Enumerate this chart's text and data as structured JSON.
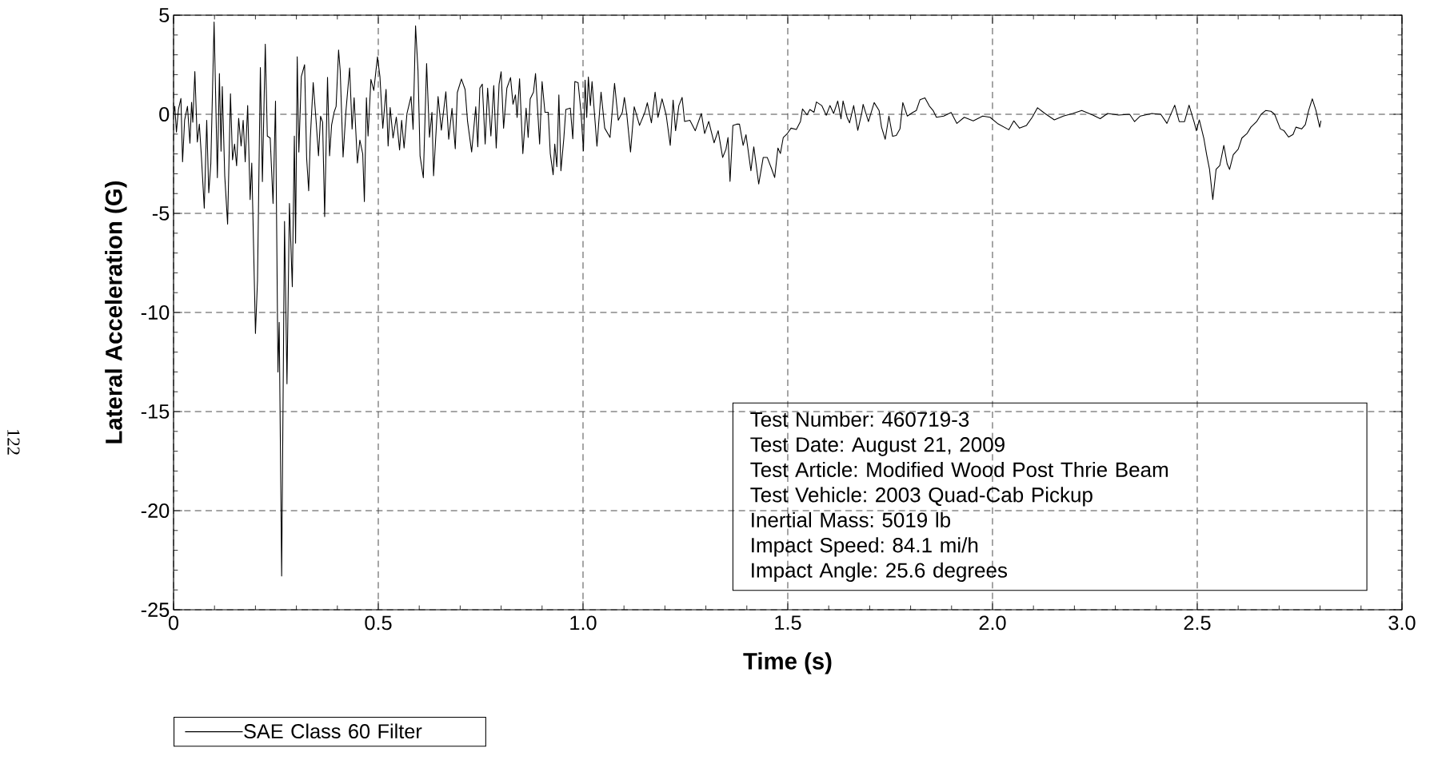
{
  "chart_data": {
    "type": "line",
    "xlabel": "Time (s)",
    "ylabel": "Lateral Acceleration (G)",
    "xlim": [
      0,
      3
    ],
    "ylim": [
      -25,
      5
    ],
    "xticks": [
      0,
      0.5,
      {
        "value": 1,
        "label": "1.0"
      },
      1.5,
      {
        "value": 2,
        "label": "2.0"
      },
      2.5,
      {
        "value": 3,
        "label": "3.0"
      }
    ],
    "yticks": [
      -25,
      -20,
      -15,
      -10,
      -5,
      0,
      5
    ],
    "grid": true,
    "legend": "bottom",
    "marker": "none",
    "line_style": "solid",
    "annotations": [
      "Test Number: 460719-3",
      "Test Date: August 21, 2009",
      "Test Article: Modified Wood Post Thrie Beam",
      "Test Vehicle: 2003 Quad-Cab Pickup",
      "Inertial Mass: 5019 lb",
      "Impact Speed: 84.1 mi/h",
      "Impact Angle: 25.6 degrees",
      "122"
    ],
    "x": [
      0,
      0.003,
      0.007,
      0.012,
      0.018,
      0.022,
      0.027,
      0.034,
      0.04,
      0.044,
      0.047,
      0.052,
      0.058,
      0.063,
      0.068,
      0.075,
      0.081,
      0.086,
      0.091,
      0.099,
      0.107,
      0.112,
      0.116,
      0.119,
      0.125,
      0.132,
      0.139,
      0.144,
      0.149,
      0.154,
      0.159,
      0.165,
      0.17,
      0.175,
      0.181,
      0.187,
      0.191,
      0.2,
      0.205,
      0.212,
      0.217,
      0.224,
      0.229,
      0.236,
      0.243,
      0.249,
      0.255,
      0.258,
      0.264,
      0.271,
      0.277,
      0.283,
      0.29,
      0.295,
      0.298,
      0.302,
      0.306,
      0.312,
      0.32,
      0.325,
      0.33,
      0.334,
      0.341,
      0.348,
      0.354,
      0.359,
      0.364,
      0.369,
      0.376,
      0.381,
      0.386,
      0.392,
      0.397,
      0.403,
      0.407,
      0.414,
      0.421,
      0.43,
      0.436,
      0.441,
      0.449,
      0.455,
      0.462,
      0.466,
      0.471,
      0.475,
      0.482,
      0.489,
      0.498,
      0.504,
      0.511,
      0.519,
      0.524,
      0.529,
      0.536,
      0.544,
      0.552,
      0.557,
      0.563,
      0.57,
      0.58,
      0.585,
      0.591,
      0.597,
      0.602,
      0.61,
      0.618,
      0.625,
      0.631,
      0.635,
      0.646,
      0.654,
      0.665,
      0.672,
      0.68,
      0.688,
      0.693,
      0.703,
      0.712,
      0.718,
      0.728,
      0.738,
      0.743,
      0.748,
      0.754,
      0.761,
      0.767,
      0.775,
      0.782,
      0.788,
      0.795,
      0.8,
      0.806,
      0.814,
      0.823,
      0.829,
      0.835,
      0.839,
      0.845,
      0.853,
      0.861,
      0.866,
      0.871,
      0.879,
      0.884,
      0.894,
      0.9,
      0.907,
      0.915,
      0.92,
      0.927,
      0.931,
      0.936,
      0.941,
      0.946,
      0.953,
      0.958,
      0.969,
      0.975,
      0.98,
      0.988,
      0.995,
      1.001,
      1.005,
      1.009,
      1.013,
      1.018,
      1.022,
      1.034,
      1.044,
      1.053,
      1.066,
      1.077,
      1.086,
      1.096,
      1.101,
      1.107,
      1.116,
      1.125,
      1.138,
      1.151,
      1.157,
      1.167,
      1.176,
      1.183,
      1.193,
      1.203,
      1.213,
      1.22,
      1.226,
      1.234,
      1.242,
      1.248,
      1.261,
      1.274,
      1.289,
      1.297,
      1.307,
      1.32,
      1.33,
      1.341,
      1.349,
      1.354,
      1.359,
      1.366,
      1.375,
      1.382,
      1.391,
      1.398,
      1.41,
      1.417,
      1.429,
      1.44,
      1.45,
      1.46,
      1.468,
      1.476,
      1.482,
      1.489,
      1.499,
      1.508,
      1.521,
      1.531,
      1.536,
      1.547,
      1.554,
      1.564,
      1.57,
      1.583,
      1.594,
      1.603,
      1.612,
      1.622,
      1.63,
      1.635,
      1.645,
      1.651,
      1.661,
      1.671,
      1.681,
      1.684,
      1.697,
      1.711,
      1.723,
      1.729,
      1.738,
      1.747,
      1.756,
      1.765,
      1.774,
      1.781,
      1.792,
      1.805,
      1.814,
      1.823,
      1.835,
      1.846,
      1.855,
      1.863,
      1.881,
      1.899,
      1.913,
      1.931,
      1.953,
      1.976,
      1.994,
      2.012,
      2.04,
      2.052,
      2.066,
      2.083,
      2.097,
      2.11,
      2.128,
      2.151,
      2.173,
      2.196,
      2.218,
      2.245,
      2.263,
      2.281,
      2.308,
      2.335,
      2.347,
      2.361,
      2.389,
      2.411,
      2.426,
      2.445,
      2.456,
      2.469,
      2.48,
      2.492,
      2.498,
      2.505,
      2.516,
      2.523,
      2.53,
      2.538,
      2.546,
      2.555,
      2.565,
      2.573,
      2.579,
      2.588,
      2.6,
      2.609,
      2.622,
      2.631,
      2.645,
      2.656,
      2.667,
      2.68,
      2.689,
      2.703,
      2.712,
      2.723,
      2.734,
      2.741,
      2.755,
      2.764,
      2.772,
      2.781,
      2.79,
      2.799,
      2.802
    ],
    "series": [
      {
        "name": "SAE Class 60 Filter",
        "color": "#000000",
        "values": [
          0,
          0.4,
          -0.9,
          0.26,
          0.8,
          -2.4,
          -0.3,
          0.4,
          -1.46,
          0.6,
          -0.4,
          2.16,
          -1.4,
          -0.5,
          -2.14,
          -4.74,
          -0.3,
          -3.96,
          -2.5,
          4.66,
          -3.2,
          2.06,
          -1.86,
          1.4,
          -3.1,
          -5.54,
          1.04,
          -2.3,
          -1.5,
          -2.6,
          -0.2,
          -1.6,
          -0.3,
          -2.4,
          0.44,
          -4.3,
          -2.46,
          -11.06,
          -8.4,
          2.36,
          -3.4,
          3.54,
          -1.1,
          -1.2,
          -4.5,
          0.66,
          -13.0,
          -10.5,
          -23.3,
          -5.4,
          -13.6,
          -4.5,
          -8.7,
          -1.1,
          -6.5,
          2.9,
          -1.9,
          1.9,
          2.5,
          -2.2,
          -3.86,
          -1.2,
          1.6,
          -0.3,
          -2.1,
          -0.1,
          -0.4,
          -5.16,
          1.86,
          -2.1,
          -0.54,
          0.1,
          0.4,
          3.24,
          2.2,
          -2.16,
          0.16,
          2.34,
          -0.74,
          0.84,
          -2.46,
          -1.3,
          -2.0,
          -4.4,
          0.84,
          -1.1,
          1.76,
          1.2,
          2.9,
          1.9,
          -0.7,
          1.26,
          -1.6,
          0.34,
          -1.2,
          -0.14,
          -1.8,
          -0.3,
          -1.7,
          0.04,
          0.9,
          -0.76,
          4.46,
          2.2,
          -2.1,
          -3.2,
          2.56,
          -1.16,
          0.1,
          -3.1,
          0.9,
          -0.8,
          1.14,
          -1.26,
          0.3,
          -1.74,
          1.1,
          1.78,
          1.25,
          -0.36,
          -1.9,
          0.38,
          -1.64,
          1.32,
          1.52,
          -1.5,
          1.32,
          -1.1,
          1.45,
          -1.7,
          1.52,
          2.15,
          -0.7,
          1.32,
          1.85,
          0.51,
          0.98,
          -0.16,
          1.79,
          -1.98,
          0.31,
          -1.17,
          0.78,
          1.12,
          2.06,
          -1.5,
          1.65,
          0.1,
          0.1,
          -1.98,
          -3.05,
          -1.5,
          -2.65,
          0.98,
          -2.85,
          -1.24,
          0.24,
          0.31,
          -1.24,
          1.65,
          1.59,
          0.1,
          -1.84,
          1.72,
          -0.16,
          1.88,
          0.44,
          1.65,
          -1.61,
          1.12,
          -0.7,
          -1.17,
          1.56,
          -0.3,
          0.1,
          0.85,
          -0.03,
          -1.9,
          0.38,
          -0.56,
          0.1,
          0.58,
          -0.43,
          1.12,
          -0.16,
          0.78,
          -0.03,
          -1.57,
          0.71,
          -0.83,
          0.44,
          0.85,
          -0.36,
          -0.3,
          -0.83,
          0.04,
          -0.97,
          -0.36,
          -1.44,
          -0.83,
          -2.18,
          -1.77,
          -1.17,
          -3.39,
          -0.56,
          -0.5,
          -0.5,
          -1.57,
          -1.03,
          -2.85,
          -1.64,
          -3.52,
          -2.18,
          -2.18,
          -2.72,
          -3.19,
          -1.7,
          -1.98,
          -1.17,
          -0.97,
          -0.7,
          -0.77,
          -0.36,
          0.27,
          -0.03,
          0.24,
          0.1,
          0.62,
          0.44,
          -0.05,
          0.44,
          0.04,
          0.67,
          -0.23,
          0.67,
          -0.16,
          -0.43,
          0.44,
          -0.81,
          0.1,
          0.5,
          -0.37,
          0.59,
          0.19,
          -0.65,
          -1.26,
          -0.09,
          -1.11,
          -1.07,
          -0.74,
          0.59,
          -0.09,
          0.09,
          0.19,
          0.74,
          0.83,
          0.41,
          0.19,
          -0.15,
          -0.09,
          0.09,
          -0.46,
          -0.15,
          -0.33,
          -0.09,
          -0.15,
          -0.46,
          -0.78,
          -0.33,
          -0.7,
          -0.56,
          -0.15,
          0.33,
          0.04,
          -0.28,
          -0.09,
          0.04,
          0.19,
          -0.04,
          -0.22,
          0.04,
          -0.04,
          0,
          -0.37,
          -0.09,
          0.04,
          0,
          -0.46,
          0.46,
          -0.37,
          -0.37,
          0.46,
          -0.37,
          -0.83,
          -0.28,
          -1.2,
          -2.04,
          -2.78,
          -4.3,
          -2.78,
          -2.59,
          -1.57,
          -2.5,
          -2.78,
          -2.04,
          -1.76,
          -1.2,
          -0.96,
          -0.65,
          -0.37,
          0,
          0.19,
          0.15,
          0,
          -0.74,
          -0.83,
          -1.15,
          -1.02,
          -0.65,
          -0.74,
          -0.52,
          0.19,
          0.78,
          0.19,
          -0.65,
          -0.33
        ]
      }
    ]
  }
}
